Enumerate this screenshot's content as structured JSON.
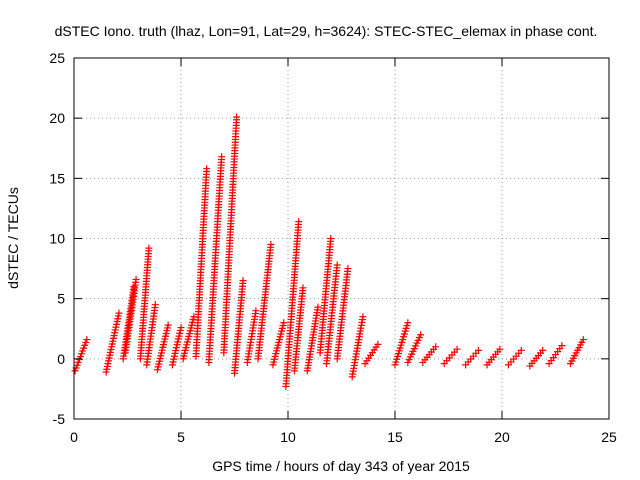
{
  "chart_data": {
    "type": "scatter",
    "title": "dSTEC Iono. truth (lhaz, Lon=91, Lat=29, h=3624): STEC-STEC_elemax in phase cont.",
    "xlabel": "GPS time / hours of day 343 of year 2015",
    "ylabel": "dSTEC  / TECUs",
    "xlim": [
      0,
      25
    ],
    "ylim": [
      -5,
      25
    ],
    "xticks": [
      0,
      5,
      10,
      15,
      20,
      25
    ],
    "yticks": [
      -5,
      0,
      5,
      10,
      15,
      20,
      25
    ],
    "grid": true,
    "marker": "plus",
    "series_color": "#ff0000",
    "arcs": [
      {
        "x": [
          0.05,
          0.6
        ],
        "y": [
          -1.0,
          1.6
        ]
      },
      {
        "x": [
          1.5,
          2.1
        ],
        "y": [
          -1.1,
          3.8
        ]
      },
      {
        "x": [
          2.3,
          2.8
        ],
        "y": [
          0.0,
          6.0
        ]
      },
      {
        "x": [
          2.4,
          2.9
        ],
        "y": [
          0.5,
          6.6
        ]
      },
      {
        "x": [
          3.1,
          3.5
        ],
        "y": [
          0.0,
          9.2
        ]
      },
      {
        "x": [
          3.4,
          3.8
        ],
        "y": [
          -0.5,
          4.5
        ]
      },
      {
        "x": [
          3.9,
          4.4
        ],
        "y": [
          -0.9,
          2.8
        ]
      },
      {
        "x": [
          4.6,
          5.0
        ],
        "y": [
          -0.5,
          2.6
        ]
      },
      {
        "x": [
          5.1,
          5.6
        ],
        "y": [
          0.0,
          3.5
        ]
      },
      {
        "x": [
          5.7,
          6.2
        ],
        "y": [
          0.2,
          15.8
        ]
      },
      {
        "x": [
          6.3,
          6.9
        ],
        "y": [
          -0.3,
          16.8
        ]
      },
      {
        "x": [
          7.0,
          7.6
        ],
        "y": [
          0.5,
          20.1
        ]
      },
      {
        "x": [
          7.5,
          7.9
        ],
        "y": [
          -1.2,
          6.5
        ]
      },
      {
        "x": [
          8.1,
          8.5
        ],
        "y": [
          -0.3,
          4.0
        ]
      },
      {
        "x": [
          8.6,
          9.2
        ],
        "y": [
          0.0,
          9.5
        ]
      },
      {
        "x": [
          9.3,
          9.8
        ],
        "y": [
          -0.5,
          3.0
        ]
      },
      {
        "x": [
          9.9,
          10.5
        ],
        "y": [
          -2.3,
          11.4
        ]
      },
      {
        "x": [
          10.3,
          10.7
        ],
        "y": [
          -1.0,
          5.9
        ]
      },
      {
        "x": [
          10.9,
          11.4
        ],
        "y": [
          -1.0,
          4.3
        ]
      },
      {
        "x": [
          11.5,
          12.0
        ],
        "y": [
          0.5,
          10.0
        ]
      },
      {
        "x": [
          11.8,
          12.3
        ],
        "y": [
          -0.4,
          7.8
        ]
      },
      {
        "x": [
          12.3,
          12.8
        ],
        "y": [
          0.0,
          7.5
        ]
      },
      {
        "x": [
          13.0,
          13.5
        ],
        "y": [
          -1.5,
          3.5
        ]
      },
      {
        "x": [
          13.6,
          14.2
        ],
        "y": [
          -0.4,
          1.2
        ]
      },
      {
        "x": [
          15.0,
          15.6
        ],
        "y": [
          -0.5,
          3.0
        ]
      },
      {
        "x": [
          15.6,
          16.2
        ],
        "y": [
          -0.3,
          2.0
        ]
      },
      {
        "x": [
          16.3,
          16.9
        ],
        "y": [
          -0.3,
          1.0
        ]
      },
      {
        "x": [
          17.3,
          17.9
        ],
        "y": [
          -0.4,
          0.8
        ]
      },
      {
        "x": [
          18.3,
          18.9
        ],
        "y": [
          -0.5,
          0.7
        ]
      },
      {
        "x": [
          19.3,
          19.9
        ],
        "y": [
          -0.5,
          0.8
        ]
      },
      {
        "x": [
          20.3,
          20.9
        ],
        "y": [
          -0.5,
          0.7
        ]
      },
      {
        "x": [
          21.3,
          21.9
        ],
        "y": [
          -0.6,
          0.7
        ]
      },
      {
        "x": [
          22.2,
          22.8
        ],
        "y": [
          -0.4,
          1.1
        ]
      },
      {
        "x": [
          23.2,
          23.8
        ],
        "y": [
          -0.4,
          1.6
        ]
      }
    ]
  }
}
